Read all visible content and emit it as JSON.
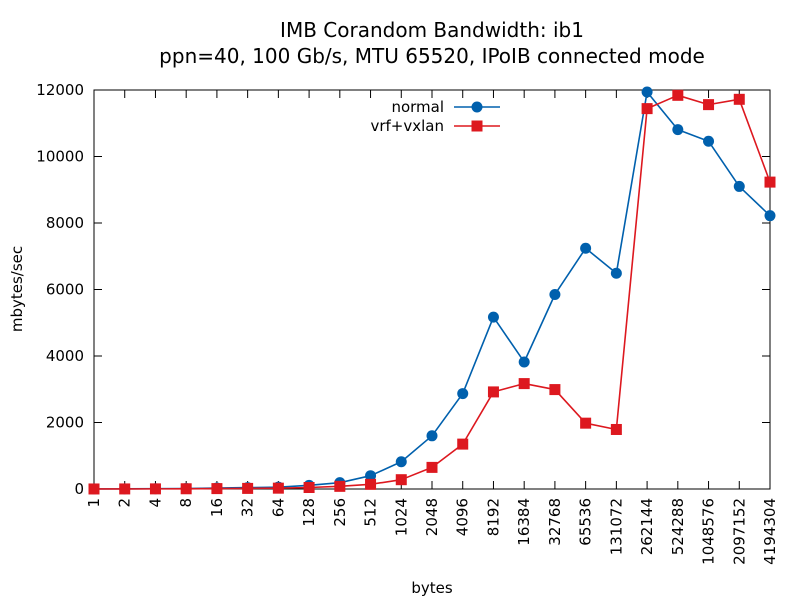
{
  "chart_data": {
    "type": "line",
    "title": "IMB Corandom Bandwidth: ib1",
    "subtitle": "ppn=40, 100 Gb/s, MTU 65520, IPoIB connected mode",
    "xlabel": "bytes",
    "ylabel": "mbytes/sec",
    "ylim": [
      0,
      12000
    ],
    "yticks": [
      "0",
      "2000",
      "4000",
      "6000",
      "8000",
      "10000",
      "12000"
    ],
    "categories": [
      "1",
      "2",
      "4",
      "8",
      "16",
      "32",
      "64",
      "128",
      "256",
      "512",
      "1024",
      "2048",
      "4096",
      "8192",
      "16384",
      "32768",
      "65536",
      "131072",
      "262144",
      "524288",
      "1048576",
      "2097152",
      "4194304"
    ],
    "legend_position": "top-center",
    "grid": false,
    "series": [
      {
        "name": "normal",
        "color": "#0060ad",
        "marker": "circle",
        "values": [
          2,
          4,
          8,
          15,
          30,
          42,
          55,
          110,
          190,
          400,
          820,
          1600,
          2870,
          5170,
          3820,
          5850,
          7240,
          6490,
          11940,
          10810,
          10460,
          9100,
          8220
        ]
      },
      {
        "name": "vrf+vxlan",
        "color": "#dd181f",
        "marker": "square",
        "values": [
          1,
          2,
          4,
          7,
          12,
          18,
          25,
          45,
          80,
          140,
          280,
          650,
          1350,
          2920,
          3170,
          2990,
          1980,
          1790,
          11440,
          11840,
          11560,
          11720,
          9230
        ]
      }
    ]
  }
}
